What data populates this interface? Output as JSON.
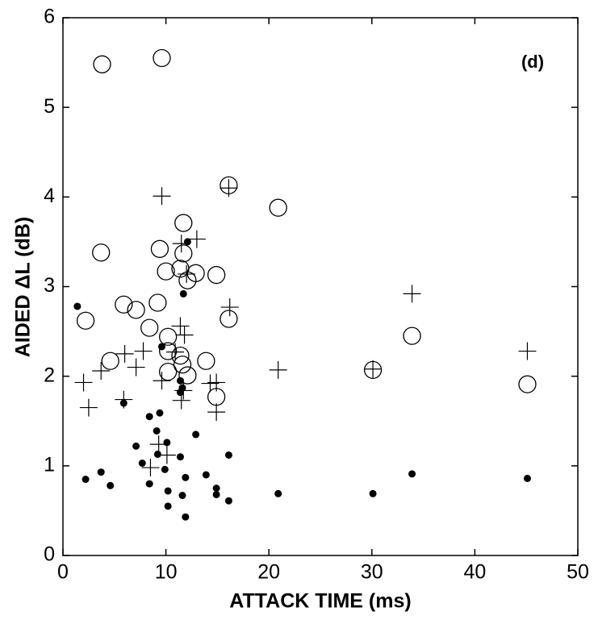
{
  "chart_data": {
    "type": "scatter",
    "annotation": "(d)",
    "x_label": "ATTACK TIME (ms)",
    "y_label": "AIDED ΔL (dB)",
    "xlim": [
      0,
      50
    ],
    "xticks": [
      0,
      10,
      20,
      30,
      40,
      50
    ],
    "ylim": [
      0,
      6
    ],
    "yticks": [
      0,
      1,
      2,
      3,
      4,
      5,
      6
    ],
    "grid": false,
    "series": [
      {
        "marker": "open-circle",
        "color": "#000000",
        "x": [
          3.8,
          9.6,
          16.1,
          20.9,
          3.7,
          11.7,
          9.4,
          11.7,
          10.0,
          11.4,
          12.9,
          12.1,
          14.9,
          5.9,
          7.1,
          9.2,
          16.1,
          2.2,
          8.4,
          10.2,
          33.9,
          4.6,
          10.2,
          11.4,
          11.6,
          13.9,
          10.2,
          12.1,
          30.1,
          14.9,
          45.1
        ],
        "values": [
          5.48,
          5.55,
          4.13,
          3.88,
          3.38,
          3.71,
          3.42,
          3.37,
          3.17,
          3.2,
          3.15,
          3.07,
          3.13,
          2.8,
          2.74,
          2.82,
          2.64,
          2.62,
          2.54,
          2.44,
          2.45,
          2.17,
          2.28,
          2.23,
          2.13,
          2.17,
          2.05,
          2.01,
          2.07,
          1.77,
          1.91
        ]
      },
      {
        "marker": "plus",
        "color": "#000000",
        "x": [
          9.6,
          16.1,
          13.0,
          11.5,
          12.0,
          16.2,
          33.9,
          11.8,
          11.4,
          6.0,
          7.8,
          7.1,
          3.7,
          2.0,
          9.6,
          10.9,
          20.9,
          45.1,
          30.1,
          14.3,
          14.9,
          11.7,
          11.5,
          14.9,
          5.9,
          2.5,
          9.3,
          10.1,
          8.5
        ],
        "values": [
          4.01,
          4.1,
          3.53,
          3.48,
          3.14,
          2.77,
          2.92,
          2.46,
          2.56,
          2.25,
          2.28,
          2.1,
          2.06,
          1.93,
          1.95,
          2.27,
          2.07,
          2.28,
          2.08,
          1.92,
          1.93,
          1.84,
          1.73,
          1.6,
          1.74,
          1.65,
          1.24,
          1.12,
          0.98
        ]
      },
      {
        "marker": "filled-dot",
        "color": "#000000",
        "x": [
          1.4,
          12.1,
          11.7,
          9.6,
          11.4,
          11.6,
          11.4,
          5.9,
          8.4,
          9.4,
          9.1,
          12.9,
          7.1,
          10.1,
          9.2,
          16.1,
          7.7,
          11.4,
          9.9,
          3.7,
          2.2,
          4.6,
          8.4,
          11.9,
          13.9,
          33.9,
          45.1,
          10.2,
          14.9,
          14.9,
          11.6,
          20.9,
          30.1,
          16.1,
          10.2,
          11.9
        ],
        "values": [
          2.78,
          3.5,
          2.92,
          2.33,
          1.95,
          1.87,
          1.82,
          1.7,
          1.55,
          1.59,
          1.39,
          1.35,
          1.22,
          1.26,
          1.13,
          1.12,
          1.03,
          1.1,
          0.96,
          0.93,
          0.85,
          0.78,
          0.8,
          0.87,
          0.9,
          0.91,
          0.86,
          0.72,
          0.75,
          0.68,
          0.67,
          0.69,
          0.69,
          0.61,
          0.55,
          0.43
        ]
      }
    ]
  }
}
